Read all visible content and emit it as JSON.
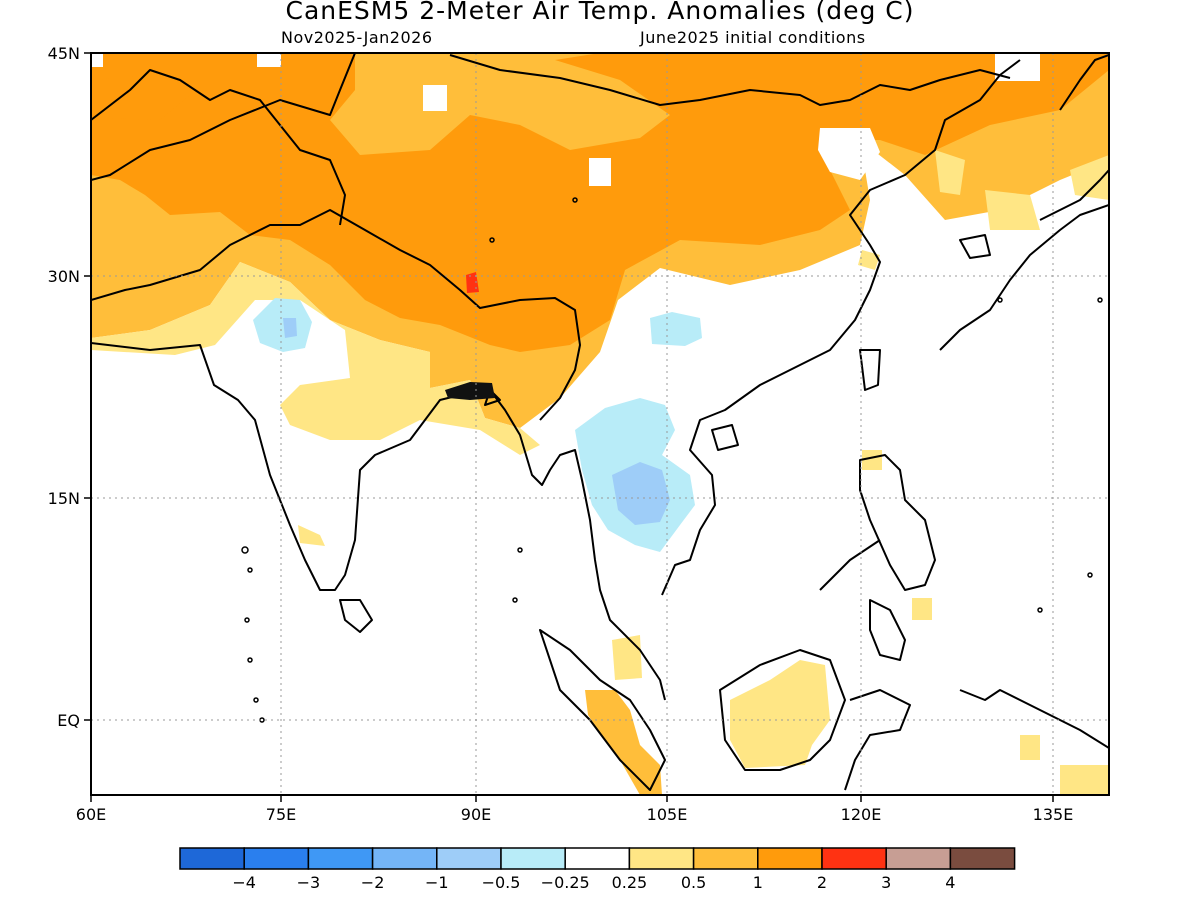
{
  "title": "CanESM5 2-Meter Air Temp. Anomalies (deg C)",
  "subtitle_left": "Nov2025-Jan2026",
  "subtitle_right": "June2025 initial conditions",
  "axes": {
    "lon_ticks": [
      "60E",
      "75E",
      "90E",
      "105E",
      "120E",
      "135E"
    ],
    "lat_ticks": [
      "45N",
      "30N",
      "15N",
      "EQ"
    ],
    "grid": "dotted"
  },
  "legend": {
    "colors": [
      "#1e68d8",
      "#2a7fee",
      "#3f98f5",
      "#74b5f7",
      "#9ecdf8",
      "#b8ecf8",
      "#ffffff",
      "#ffe685",
      "#ffbe3a",
      "#ff9b0c",
      "#ff3212",
      "#c79e94",
      "#7a4c3f"
    ],
    "labels": [
      "-4",
      "-3",
      "-2",
      "-1",
      "-0.5",
      "-0.25",
      "0.25",
      "0.5",
      "1",
      "2",
      "3",
      "4"
    ]
  },
  "map_regions": [
    {
      "name": "tibet-central-asia-warm",
      "category": "1 to 2"
    },
    {
      "name": "northern-belt-warm",
      "category": "0.5 to 1"
    },
    {
      "name": "north-india-band",
      "category": "0.25 to 0.5"
    },
    {
      "name": "indochina-cool",
      "category": "-0.5 to -0.25"
    },
    {
      "name": "cambodia-cool",
      "category": "-1 to -0.5"
    },
    {
      "name": "borneo-warm",
      "category": "0.25 to 0.5"
    },
    {
      "name": "tibet-hotspot",
      "category": "2 to 3"
    }
  ]
}
